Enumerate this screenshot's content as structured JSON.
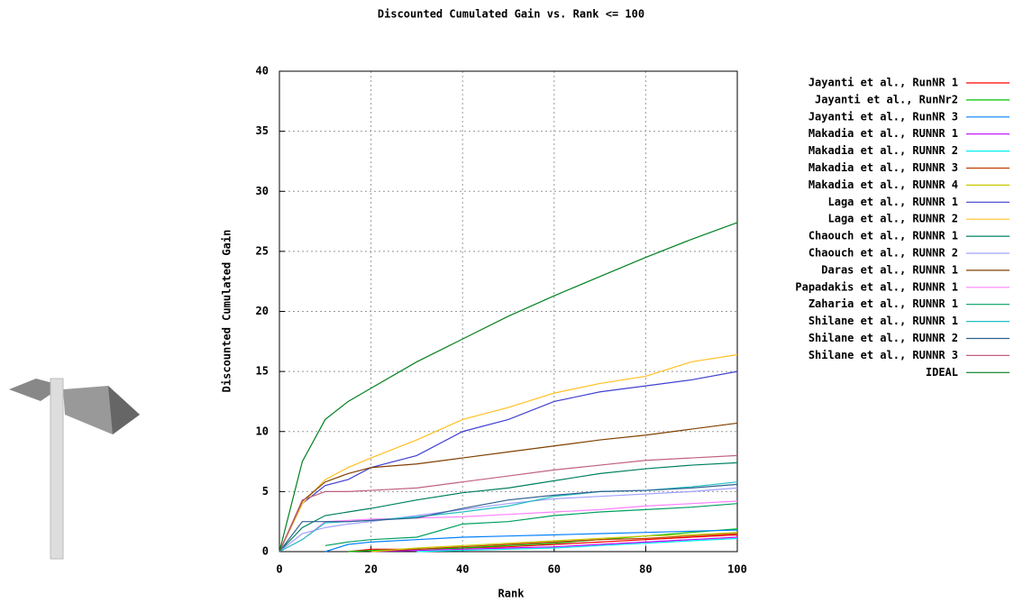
{
  "chart_data": {
    "type": "line",
    "title": "Discounted Cumulated Gain vs. Rank <= 100",
    "xlabel": "Rank",
    "ylabel": "Discounted Cumulated Gain",
    "xlim": [
      0,
      100
    ],
    "ylim": [
      0,
      40
    ],
    "xticks": [
      0,
      20,
      40,
      60,
      80,
      100
    ],
    "yticks": [
      0,
      5,
      10,
      15,
      20,
      25,
      30,
      35,
      40
    ],
    "grid": true,
    "legend": "right",
    "x": [
      0,
      5,
      10,
      15,
      20,
      30,
      40,
      50,
      60,
      70,
      80,
      90,
      100
    ],
    "series": [
      {
        "name": "Jayanti et al., RunNR 1",
        "color": "#ff0000",
        "values": [
          null,
          null,
          null,
          0,
          0.2,
          0.2,
          0.3,
          0.4,
          0.6,
          0.8,
          1.0,
          1.2,
          1.4
        ]
      },
      {
        "name": "Jayanti et al., RunNr2",
        "color": "#00c000",
        "values": [
          null,
          null,
          null,
          0,
          0.1,
          0.2,
          0.3,
          0.5,
          0.7,
          1.0,
          1.3,
          1.6,
          1.9
        ]
      },
      {
        "name": "Jayanti et al., RunNR 3",
        "color": "#0080ff",
        "values": [
          null,
          null,
          0,
          0.6,
          0.8,
          1.0,
          1.2,
          1.3,
          1.4,
          1.5,
          1.6,
          1.7,
          1.8
        ]
      },
      {
        "name": "Makadia et al., RUNNR 1",
        "color": "#c000ff",
        "values": [
          null,
          null,
          null,
          null,
          0,
          0.1,
          0.2,
          0.3,
          0.4,
          0.6,
          0.8,
          1.0,
          1.2
        ]
      },
      {
        "name": "Makadia et al., RUNNR 2",
        "color": "#00eeee",
        "values": [
          null,
          null,
          null,
          null,
          null,
          0,
          0.1,
          0.2,
          0.3,
          0.5,
          0.7,
          0.9,
          1.1
        ]
      },
      {
        "name": "Makadia et al., RUNNR 3",
        "color": "#c04000",
        "values": [
          null,
          null,
          null,
          null,
          0,
          0.2,
          0.4,
          0.6,
          0.8,
          1.0,
          1.1,
          1.3,
          1.5
        ]
      },
      {
        "name": "Makadia et al., RUNNR 4",
        "color": "#c8c800",
        "values": [
          null,
          null,
          null,
          null,
          0,
          0.3,
          0.5,
          0.7,
          0.9,
          1.1,
          1.3,
          1.4,
          1.6
        ]
      },
      {
        "name": "Laga et al., RUNNR 1",
        "color": "#4040d0",
        "values": [
          0,
          4,
          5.5,
          6,
          7,
          8,
          10,
          11,
          12.5,
          13.3,
          13.8,
          14.3,
          15
        ]
      },
      {
        "name": "Laga et al., RUNNR 2",
        "color": "#ffc020",
        "values": [
          0,
          4,
          6,
          7,
          7.8,
          9.3,
          11,
          12,
          13.2,
          14,
          14.6,
          15.8,
          16.4
        ]
      },
      {
        "name": "Chaouch et al., RUNNR 1",
        "color": "#008060",
        "values": [
          0,
          2,
          3,
          3.3,
          3.6,
          4.3,
          4.9,
          5.3,
          5.9,
          6.5,
          6.9,
          7.2,
          7.4
        ]
      },
      {
        "name": "Chaouch et al., RUNNR 2",
        "color": "#a0a0ff",
        "values": [
          0,
          1.5,
          2,
          2.3,
          2.5,
          3,
          3.5,
          4,
          4.4,
          4.6,
          4.8,
          5,
          5.3
        ]
      },
      {
        "name": "Daras et al., RUNNR 1",
        "color": "#804000",
        "values": [
          0,
          4.2,
          5.8,
          6.5,
          7,
          7.3,
          7.8,
          8.3,
          8.8,
          9.3,
          9.7,
          10.2,
          10.7
        ]
      },
      {
        "name": "Papadakis et al., RUNNR 1",
        "color": "#ff80ff",
        "values": [
          0,
          1,
          2.5,
          2.6,
          2.7,
          2.8,
          2.9,
          3.1,
          3.3,
          3.5,
          3.8,
          4,
          4.2
        ]
      },
      {
        "name": "Zaharia et al., RUNNR 1",
        "color": "#00a060",
        "values": [
          null,
          null,
          0.5,
          0.8,
          1,
          1.2,
          2.3,
          2.5,
          3,
          3.3,
          3.5,
          3.7,
          4
        ]
      },
      {
        "name": "Shilane et al., RUNNR 1",
        "color": "#20c0c0",
        "values": [
          0,
          1,
          2.4,
          2.5,
          2.6,
          2.9,
          3.3,
          3.8,
          4.6,
          5,
          5.1,
          5.4,
          5.8
        ]
      },
      {
        "name": "Shilane et al., RUNNR 2",
        "color": "#306090",
        "values": [
          0,
          2.5,
          2.5,
          2.5,
          2.6,
          2.8,
          3.6,
          4.3,
          4.7,
          5,
          5.1,
          5.3,
          5.6
        ]
      },
      {
        "name": "Shilane et al., RUNNR 3",
        "color": "#c06080",
        "values": [
          0,
          4.3,
          5,
          5,
          5.1,
          5.3,
          5.8,
          6.3,
          6.8,
          7.2,
          7.6,
          7.8,
          8
        ]
      },
      {
        "name": "IDEAL",
        "color": "#008020",
        "values": [
          0,
          7.5,
          11,
          12.5,
          13.6,
          15.8,
          17.7,
          19.6,
          21.3,
          22.9,
          24.5,
          26,
          27.4
        ]
      }
    ]
  }
}
